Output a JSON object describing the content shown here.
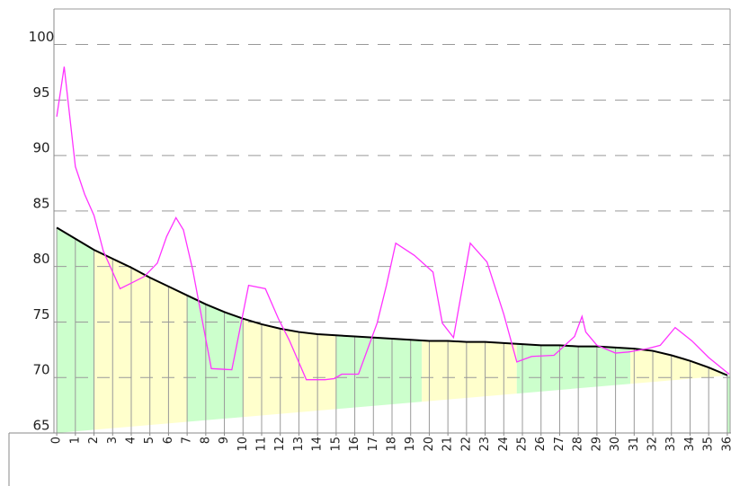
{
  "chart_data": {
    "type": "line",
    "xlim": [
      -0.15,
      36.15
    ],
    "xticks": [
      0,
      1,
      2,
      3,
      4,
      5,
      6,
      7,
      8,
      9,
      10,
      11,
      12,
      13,
      14,
      15,
      16,
      17,
      18,
      19,
      20,
      21,
      22,
      23,
      24,
      25,
      26,
      27,
      28,
      29,
      30,
      31,
      32,
      33,
      34,
      35,
      36
    ],
    "ylim": [
      65,
      103.2
    ],
    "yticks": [
      65,
      70,
      75,
      80,
      85,
      90,
      95,
      100
    ],
    "grid": true,
    "regions": [
      {
        "start": 0,
        "end": 2,
        "color": "#ccffcc"
      },
      {
        "start": 2,
        "end": 7,
        "color": "#ffffcc"
      },
      {
        "start": 7,
        "end": 10,
        "color": "#ccffcc"
      },
      {
        "start": 10,
        "end": 15,
        "color": "#ffffcc"
      },
      {
        "start": 15,
        "end": 19.6,
        "color": "#ccffcc"
      },
      {
        "start": 19.6,
        "end": 24.7,
        "color": "#ffffcc"
      },
      {
        "start": 24.7,
        "end": 30.8,
        "color": "#ccffcc"
      },
      {
        "start": 30.8,
        "end": 35.7,
        "color": "#ffffcc"
      },
      {
        "start": 35.7,
        "end": 36.15,
        "color": "#ccffcc"
      }
    ],
    "series": [
      {
        "color": "#000000",
        "fill": true,
        "x": [
          0,
          1,
          2,
          3,
          4,
          5,
          6,
          7,
          8,
          9,
          10,
          11,
          12,
          13,
          14,
          15,
          16,
          17,
          18,
          19,
          20,
          21,
          22,
          23,
          24,
          25,
          26,
          27,
          28,
          29,
          30,
          31,
          32,
          33,
          34,
          35,
          36
        ],
        "values": [
          83.5,
          82.5,
          81.5,
          80.7,
          79.9,
          79.0,
          78.2,
          77.4,
          76.6,
          75.9,
          75.3,
          74.8,
          74.4,
          74.1,
          73.9,
          73.8,
          73.7,
          73.6,
          73.5,
          73.4,
          73.3,
          73.3,
          73.2,
          73.2,
          73.1,
          73.0,
          72.9,
          72.9,
          72.8,
          72.8,
          72.7,
          72.6,
          72.4,
          72.0,
          71.5,
          70.9,
          70.2
        ]
      },
      {
        "color": "#ff33ff",
        "fill": false,
        "x": [
          0,
          0.4,
          1,
          1.5,
          2,
          2.5,
          3.4,
          4,
          4.7,
          5.4,
          5.9,
          6.4,
          6.8,
          7.3,
          8.3,
          9.4,
          10.3,
          11.2,
          11.9,
          12.5,
          13.4,
          14.4,
          14.9,
          15.3,
          16.2,
          17.2,
          17.7,
          18.2,
          19.2,
          20.2,
          20.7,
          21.3,
          22.2,
          23.1,
          24,
          24.7,
          25.5,
          26.7,
          27.8,
          28.2,
          28.4,
          29,
          30,
          30.7,
          31.7,
          32.4,
          33.2,
          34.1,
          35,
          36.1
        ],
        "values": [
          93.5,
          98,
          89,
          86.5,
          84.6,
          81.4,
          78,
          78.5,
          79.1,
          80.3,
          82.7,
          84.4,
          83.3,
          79.7,
          70.8,
          70.7,
          78.3,
          78,
          75.3,
          73.3,
          69.8,
          69.8,
          69.9,
          70.3,
          70.3,
          74.9,
          78.3,
          82.1,
          81,
          79.5,
          74.9,
          73.6,
          82.1,
          80.4,
          75.7,
          71.4,
          71.9,
          72,
          73.7,
          75.5,
          74.1,
          72.9,
          72.2,
          72.3,
          72.6,
          72.9,
          74.5,
          73.3,
          71.8,
          70.3
        ]
      }
    ]
  }
}
